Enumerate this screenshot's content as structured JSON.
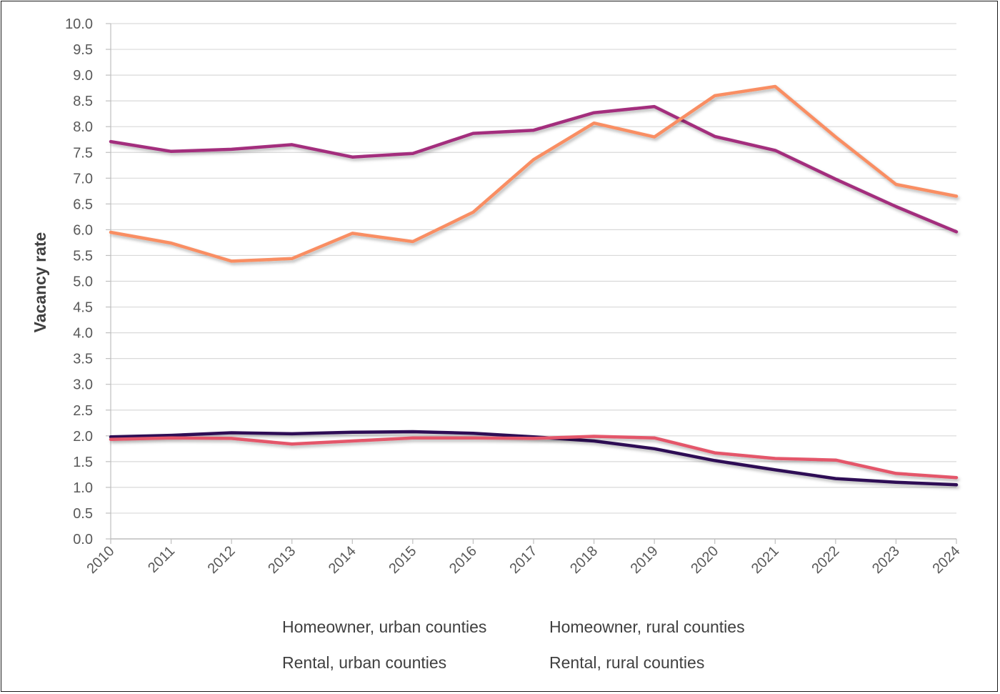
{
  "chart_data": {
    "type": "line",
    "title": "",
    "xlabel": "",
    "ylabel": "Vacancy rate",
    "ylim": [
      0,
      10
    ],
    "ystep": 0.5,
    "grid": true,
    "legend_position": "bottom",
    "x": [
      "2010",
      "2011",
      "2012",
      "2013",
      "2014",
      "2015",
      "2016",
      "2017",
      "2018",
      "2019",
      "2020",
      "2021",
      "2022",
      "2023",
      "2024"
    ],
    "yticks": [
      "0.0",
      "0.5",
      "1.0",
      "1.5",
      "2.0",
      "2.5",
      "3.0",
      "3.5",
      "4.0",
      "4.5",
      "5.0",
      "5.5",
      "6.0",
      "6.5",
      "7.0",
      "7.5",
      "8.0",
      "8.5",
      "9.0",
      "9.5",
      "10.0"
    ],
    "series": [
      {
        "name": "Homeowner, urban counties",
        "color": "#2e1155",
        "values": [
          1.98,
          2.01,
          2.06,
          2.04,
          2.07,
          2.08,
          2.05,
          1.98,
          1.9,
          1.75,
          1.52,
          1.34,
          1.17,
          1.1,
          1.05
        ]
      },
      {
        "name": "Homeowner, rural counties",
        "color": "#e4566a",
        "values": [
          1.93,
          1.96,
          1.95,
          1.84,
          1.9,
          1.96,
          1.96,
          1.95,
          1.99,
          1.96,
          1.67,
          1.56,
          1.53,
          1.27,
          1.19
        ]
      },
      {
        "name": "Rental, urban counties",
        "color": "#a32d7d",
        "values": [
          7.71,
          7.52,
          7.56,
          7.65,
          7.41,
          7.48,
          7.87,
          7.93,
          8.27,
          8.39,
          7.81,
          7.54,
          6.98,
          6.45,
          5.96
        ]
      },
      {
        "name": "Rental, rural counties",
        "color": "#f98e63",
        "values": [
          5.95,
          5.74,
          5.39,
          5.44,
          5.93,
          5.77,
          6.34,
          7.36,
          8.07,
          7.8,
          8.6,
          8.78,
          7.8,
          6.88,
          6.65
        ]
      }
    ]
  }
}
